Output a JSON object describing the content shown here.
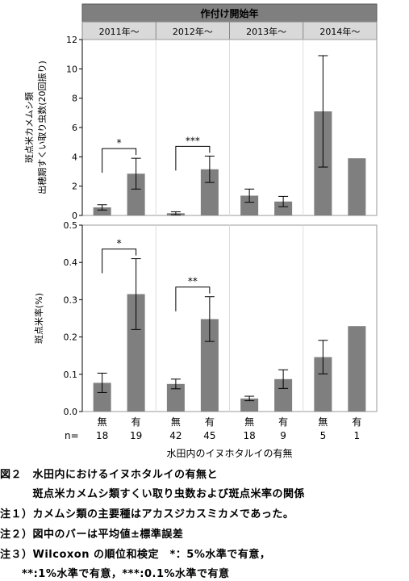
{
  "chart_data": {
    "type": "bar",
    "strip_title": "作付け開始年",
    "years": [
      "2011年～",
      "2012年～",
      "2013年～",
      "2014年～"
    ],
    "categories": [
      "無",
      "有",
      "無",
      "有",
      "無",
      "有",
      "無",
      "有"
    ],
    "n_label": "n=",
    "n_values": [
      "18",
      "19",
      "42",
      "45",
      "18",
      "9",
      "5",
      "1"
    ],
    "xlabel": "水田内のイヌホタルイの有無",
    "panels": [
      {
        "ylabel_line1": "斑点米カメムシ類",
        "ylabel_line2": "出穂期すくい取り虫数(20回振り)",
        "ylim": [
          0,
          12
        ],
        "yticks": [
          "0",
          "2",
          "4",
          "6",
          "8",
          "10",
          "12"
        ],
        "values": [
          0.55,
          2.85,
          0.15,
          3.15,
          1.35,
          0.95,
          7.1,
          3.9
        ],
        "errors": [
          0.18,
          1.05,
          0.1,
          0.9,
          0.45,
          0.35,
          3.8,
          0
        ],
        "significance": [
          {
            "bars": [
              0,
              1
            ],
            "label": "*"
          },
          {
            "bars": [
              2,
              3
            ],
            "label": "***"
          }
        ]
      },
      {
        "ylabel_line1": "斑点米率(%)",
        "ylabel_line2": "",
        "ylim": [
          0,
          0.5
        ],
        "yticks": [
          "0.0",
          "0.1",
          "0.2",
          "0.3",
          "0.4",
          "0.5"
        ],
        "values": [
          0.077,
          0.315,
          0.074,
          0.248,
          0.035,
          0.087,
          0.146,
          0.229
        ],
        "errors": [
          0.026,
          0.095,
          0.013,
          0.06,
          0.006,
          0.025,
          0.045,
          0
        ],
        "significance": [
          {
            "bars": [
              0,
              1
            ],
            "label": "*"
          },
          {
            "bars": [
              2,
              3
            ],
            "label": "**"
          }
        ]
      }
    ],
    "colors": {
      "bar": "#7f7f7f",
      "strip": "#d9d9d9",
      "title_strip": "#7f7f7f",
      "axis": "#000000"
    }
  },
  "caption": {
    "line1": "図２　水田内におけるイヌホタルイの有無と",
    "line2": "　　　斑点米カメムシ類すくい取り虫数および斑点米率の関係",
    "note1": "注１）カメムシ類の主要種はアカスジカスミカメであった。",
    "note2": "注２）図中のバーは平均値±標準誤差",
    "note3": "注３）Wilcoxon の順位和検定　*：5%水準で有意，",
    "note4": "　　**:1%水準で有意，***:0.1%水準で有意"
  }
}
